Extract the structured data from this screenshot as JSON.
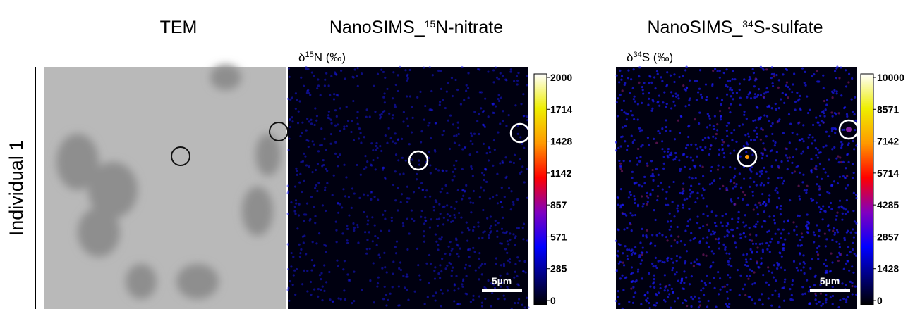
{
  "panels": [
    {
      "title": {
        "text": "TEM"
      }
    },
    {
      "title": {
        "prefix": "NanoSIMS_",
        "sup": "15",
        "suffix": "N-nitrate"
      },
      "unit": {
        "prefix": "δ",
        "sup": "15",
        "suffix": "N (‰)"
      },
      "colorbar": [
        "2000",
        "1714",
        "1428",
        "1142",
        "857",
        "571",
        "285",
        "0"
      ],
      "scale_bar": "5µm"
    },
    {
      "title": {
        "prefix": "NanoSIMS_",
        "sup": "34",
        "suffix": "S-sulfate"
      },
      "unit": {
        "prefix": "δ",
        "sup": "34",
        "suffix": "S (‰)"
      },
      "colorbar": [
        "10000",
        "8571",
        "7142",
        "5714",
        "4285",
        "2857",
        "1428",
        "0"
      ],
      "scale_bar": "5µm"
    }
  ],
  "row_label": "Individual 1"
}
